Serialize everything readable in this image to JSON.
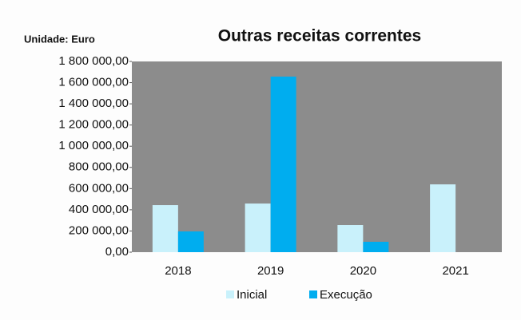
{
  "chart_data": {
    "type": "bar",
    "title": "Outras receitas correntes",
    "unit": "Unidade: Euro",
    "categories": [
      "2018",
      "2019",
      "2020",
      "2021"
    ],
    "series": [
      {
        "name": "Inicial",
        "color": "#c9f1fb",
        "values": [
          444000,
          459000,
          256000,
          640000
        ]
      },
      {
        "name": "Execução",
        "color": "#00adef",
        "values": [
          196000,
          1657000,
          98000,
          null
        ]
      }
    ],
    "ylim": [
      0,
      1800000
    ],
    "yticks": [
      {
        "value": 0,
        "label": "0,00"
      },
      {
        "value": 200000,
        "label": "200 000,00"
      },
      {
        "value": 400000,
        "label": "400 000,00"
      },
      {
        "value": 600000,
        "label": "600 000,00"
      },
      {
        "value": 800000,
        "label": "800 000,00"
      },
      {
        "value": 1000000,
        "label": "1 000 000,00"
      },
      {
        "value": 1200000,
        "label": "1 200 000,00"
      },
      {
        "value": 1400000,
        "label": "1 400 000,00"
      },
      {
        "value": 1600000,
        "label": "1 600 000,00"
      },
      {
        "value": 1800000,
        "label": "1 800 000,00"
      }
    ],
    "plot_background": "#8c8c8c",
    "legend": "bottom"
  }
}
